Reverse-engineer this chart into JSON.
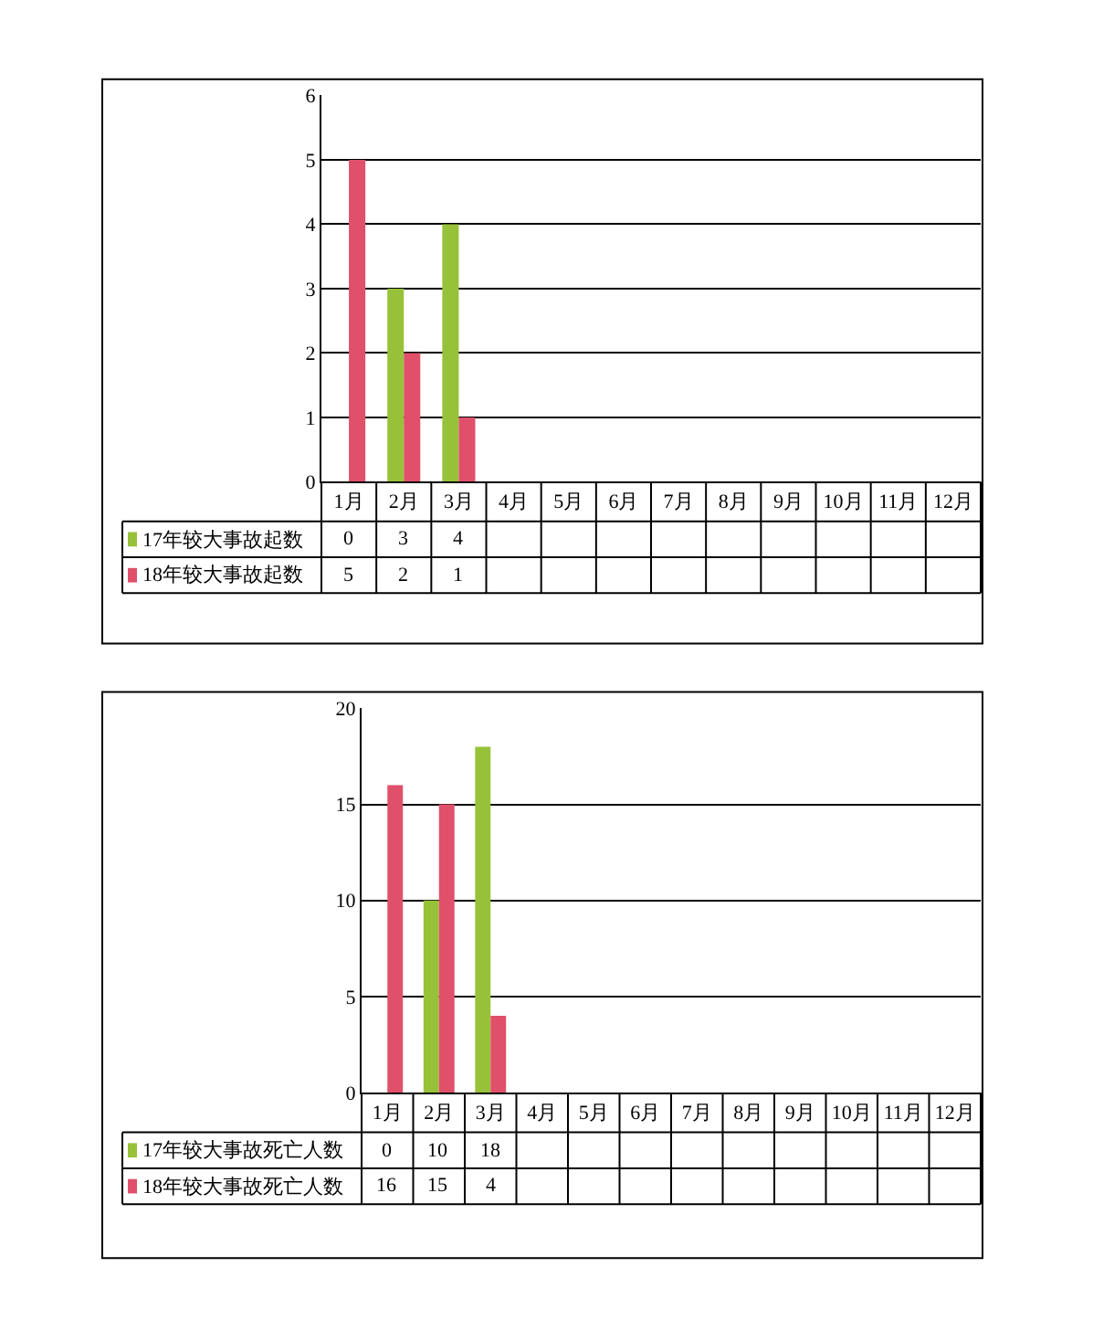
{
  "chart_data": [
    {
      "type": "bar",
      "categories": [
        "1月",
        "2月",
        "3月",
        "4月",
        "5月",
        "6月",
        "7月",
        "8月",
        "9月",
        "10月",
        "11月",
        "12月"
      ],
      "series": [
        {
          "name": "17年较大事故起数",
          "color": "#98c13a",
          "values": [
            0,
            3,
            4,
            null,
            null,
            null,
            null,
            null,
            null,
            null,
            null,
            null
          ]
        },
        {
          "name": "18年较大事故起数",
          "color": "#e0506a",
          "values": [
            5,
            2,
            1,
            null,
            null,
            null,
            null,
            null,
            null,
            null,
            null,
            null
          ]
        }
      ],
      "ylim": [
        0,
        6
      ],
      "yticks": [
        0,
        1,
        2,
        3,
        4,
        5,
        6
      ],
      "grid": "y",
      "legend": "bottom left",
      "data_labels": true
    },
    {
      "type": "bar",
      "categories": [
        "1月",
        "2月",
        "3月",
        "4月",
        "5月",
        "6月",
        "7月",
        "8月",
        "9月",
        "10月",
        "11月",
        "12月"
      ],
      "series": [
        {
          "name": "17年较大事故死亡人数",
          "color": "#98c13a",
          "values": [
            0,
            10,
            18,
            null,
            null,
            null,
            null,
            null,
            null,
            null,
            null,
            null
          ]
        },
        {
          "name": "18年较大事故死亡人数",
          "color": "#e0506a",
          "values": [
            16,
            15,
            4,
            null,
            null,
            null,
            null,
            null,
            null,
            null,
            null,
            null
          ]
        }
      ],
      "ylim": [
        0,
        20
      ],
      "yticks": [
        0,
        5,
        10,
        15,
        20
      ],
      "grid": "y",
      "legend": "bottom left",
      "data_labels": true
    }
  ]
}
